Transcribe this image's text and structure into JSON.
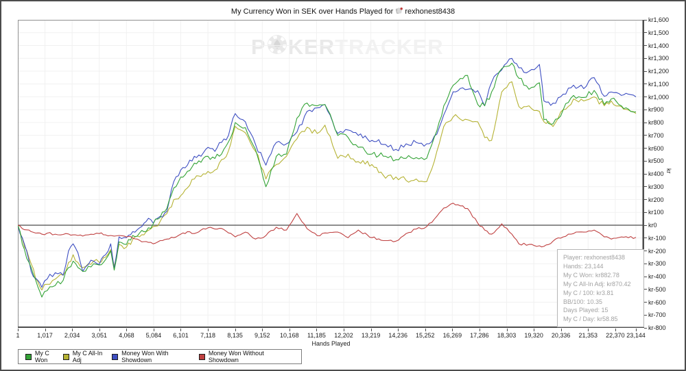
{
  "title": {
    "prefix": "My Currency Won in SEK over Hands Played for",
    "player": "rexhonest8438"
  },
  "watermark": {
    "p": "P",
    "ker": "KER",
    "tracker": "TRACKER"
  },
  "tooltip": {
    "lines": [
      "Player: rexhonest8438",
      "Hands: 23,144",
      "My C Won: kr882.78",
      "My C All-In Adj: kr870.42",
      "My C / 100: kr3.81",
      "BB/100: 10.35",
      "Days Played: 15",
      "My C / Day: kr58.85"
    ]
  },
  "legend": [
    {
      "label": "My C Won",
      "color": "#33a336"
    },
    {
      "label": "My C All-In Adj",
      "color": "#b5b233"
    },
    {
      "label": "Money Won With Showdown",
      "color": "#3d4ec1"
    },
    {
      "label": "Money Won Without Showdown",
      "color": "#bf4040"
    }
  ],
  "chart_data": {
    "type": "line",
    "title": "My Currency Won in SEK over Hands Played for rexhonest8438",
    "xlabel": "Hands Played",
    "ylabel": "kr",
    "grid": true,
    "legend_position": "bottom-left",
    "ylim": [
      -800,
      1600
    ],
    "y_tick_step": 100,
    "y_ticks": [
      1600,
      1500,
      1400,
      1300,
      1200,
      1100,
      1000,
      900,
      800,
      700,
      600,
      500,
      400,
      300,
      200,
      100,
      0,
      -100,
      -200,
      -300,
      -400,
      -500,
      -600,
      -700,
      -800
    ],
    "y_tick_labels": [
      "kr1,600",
      "kr1,500",
      "kr1,400",
      "kr1,300",
      "kr1,200",
      "kr1,100",
      "kr1,000",
      "kr900",
      "kr800",
      "kr700",
      "kr600",
      "kr500",
      "kr400",
      "kr300",
      "kr200",
      "kr100",
      "kr0",
      "kr-100",
      "kr-200",
      "kr-300",
      "kr-400",
      "kr-500",
      "kr-600",
      "kr-700",
      "kr-800"
    ],
    "x_ticks": [
      1,
      1017,
      2034,
      3051,
      4068,
      5084,
      6101,
      7118,
      8135,
      9152,
      10168,
      11185,
      12202,
      13219,
      14236,
      15252,
      16269,
      17286,
      18303,
      19320,
      20336,
      21353,
      22370,
      23144
    ],
    "x_tick_labels": [
      "1",
      "1,017",
      "2,034",
      "3,051",
      "4,068",
      "5,084",
      "6,101",
      "7,118",
      "8,135",
      "9,152",
      "10,168",
      "11,185",
      "12,202",
      "13,219",
      "14,236",
      "15,252",
      "16,269",
      "17,286",
      "18,303",
      "19,320",
      "20,336",
      "21,353",
      "22,370",
      "23,144"
    ],
    "x": [
      1,
      250,
      500,
      750,
      900,
      1100,
      1400,
      1700,
      1900,
      2070,
      2250,
      2430,
      2640,
      2840,
      3050,
      3280,
      3480,
      3610,
      3790,
      4070,
      4300,
      4560,
      4890,
      5070,
      5330,
      5580,
      5840,
      6100,
      6350,
      6610,
      6860,
      7120,
      7380,
      7630,
      7890,
      8140,
      8520,
      8900,
      9290,
      9680,
      10060,
      10450,
      10830,
      11210,
      11500,
      11980,
      12370,
      12750,
      13260,
      13770,
      14160,
      14540,
      14920,
      15310,
      15690,
      15950,
      16300,
      16840,
      17220,
      17480,
      17740,
      18120,
      18500,
      18760,
      19140,
      19530,
      19700,
      20040,
      20420,
      20810,
      21190,
      21580,
      21960,
      22220,
      22600,
      22860,
      23144
    ],
    "series": [
      {
        "name": "My C Won",
        "color": "#33a336",
        "values": [
          0,
          -190,
          -330,
          -480,
          -560,
          -510,
          -470,
          -430,
          -330,
          -280,
          -330,
          -360,
          -320,
          -300,
          -310,
          -270,
          -200,
          -350,
          -130,
          -150,
          -80,
          -60,
          -20,
          10,
          60,
          130,
          290,
          375,
          420,
          484,
          490,
          537,
          520,
          554,
          650,
          800,
          760,
          590,
          300,
          537,
          554,
          833,
          952,
          930,
          940,
          699,
          683,
          607,
          554,
          537,
          511,
          521,
          527,
          521,
          736,
          930,
          1090,
          1167,
          941,
          930,
          1038,
          1220,
          1263,
          1145,
          1059,
          1110,
          822,
          790,
          898,
          1011,
          995,
          1050,
          941,
          984,
          930,
          905,
          883
        ]
      },
      {
        "name": "My C All-In Adj",
        "color": "#b5b233",
        "values": [
          0,
          -170,
          -300,
          -440,
          -505,
          -460,
          -420,
          -390,
          -290,
          -230,
          -290,
          -330,
          -300,
          -280,
          -290,
          -250,
          -190,
          -320,
          -150,
          -170,
          -110,
          -90,
          -40,
          -10,
          30,
          90,
          200,
          230,
          290,
          360,
          380,
          419,
          430,
          511,
          580,
          770,
          720,
          575,
          360,
          473,
          537,
          672,
          763,
          715,
          780,
          521,
          554,
          495,
          473,
          366,
          376,
          349,
          360,
          340,
          575,
          769,
          844,
          822,
          806,
          683,
          661,
          1038,
          1118,
          925,
          930,
          887,
          806,
          769,
          900,
          984,
          968,
          1000,
          930,
          968,
          925,
          898,
          870
        ]
      },
      {
        "name": "Money Won With Showdown",
        "color": "#3d4ec1",
        "values": [
          0,
          -150,
          -360,
          -430,
          -484,
          -419,
          -370,
          -390,
          -200,
          -145,
          -215,
          -360,
          -306,
          -280,
          -306,
          -231,
          -145,
          -339,
          -91,
          -97,
          -50,
          -20,
          54,
          16,
          70,
          108,
          339,
          430,
          468,
          537,
          537,
          607,
          575,
          645,
          700,
          870,
          806,
          629,
          468,
          645,
          634,
          726,
          887,
          914,
          941,
          715,
          742,
          699,
          661,
          629,
          591,
          634,
          645,
          634,
          710,
          860,
          1040,
          1059,
          1048,
          930,
          1113,
          1210,
          1300,
          1226,
          1199,
          1253,
          968,
          951,
          1021,
          1091,
          1064,
          1150,
          1005,
          1038,
          1011,
          1021,
          1000
        ]
      },
      {
        "name": "Money Won Without Showdown",
        "color": "#bf4040",
        "values": [
          0,
          -35,
          -50,
          -60,
          -70,
          -62,
          -70,
          -72,
          -68,
          -75,
          -80,
          -85,
          -75,
          -72,
          -65,
          -75,
          -80,
          -85,
          -80,
          -91,
          -100,
          -118,
          -134,
          -145,
          -120,
          -108,
          -97,
          -70,
          -50,
          -65,
          -38,
          -20,
          -30,
          -25,
          -60,
          -91,
          -54,
          -108,
          -81,
          -16,
          -38,
          91,
          -27,
          -81,
          -60,
          -54,
          -97,
          -38,
          -97,
          -120,
          -124,
          -65,
          -30,
          -11,
          70,
          134,
          172,
          130,
          16,
          -38,
          -70,
          11,
          -70,
          -145,
          -150,
          -160,
          -165,
          -124,
          -91,
          -65,
          -54,
          -38,
          -91,
          -108,
          -91,
          -97,
          -95
        ]
      }
    ]
  }
}
